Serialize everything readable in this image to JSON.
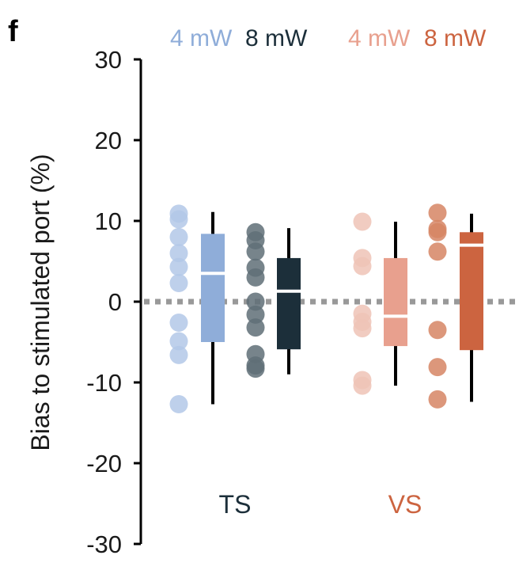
{
  "panel_label": "f",
  "chart_data": {
    "type": "box",
    "ylabel": "Bias to stimulated port (%)",
    "ylim": [
      -30,
      30
    ],
    "yticks": [
      30,
      20,
      10,
      0,
      -10,
      -20,
      -30
    ],
    "reference_line": {
      "y": 0,
      "style": "dotted"
    },
    "legend": {
      "position": "top",
      "entries": [
        {
          "label": "4 mW",
          "color": "#8fadd9"
        },
        {
          "label": "8 mW",
          "color": "#1c2f3a"
        },
        {
          "label": "4 mW",
          "color": "#e8a08e"
        },
        {
          "label": "8 mW",
          "color": "#cc6440"
        }
      ]
    },
    "groups": [
      {
        "label": "TS",
        "label_color": "#1c2f3a"
      },
      {
        "label": "VS",
        "label_color": "#cc6440"
      }
    ],
    "series": [
      {
        "name": "TS 4 mW",
        "group": "TS",
        "color": "#8fadd9",
        "point_color": "#b3c8e8",
        "points": [
          10.9,
          10.2,
          8.0,
          6.0,
          4.3,
          2.3,
          -2.6,
          -4.9,
          -6.6,
          -12.7
        ],
        "box": {
          "q1": -5.0,
          "median": 3.5,
          "q3": 8.4,
          "whisker_low": -12.7,
          "whisker_high": 11.1
        }
      },
      {
        "name": "TS 8 mW",
        "group": "TS",
        "color": "#1c2f3a",
        "point_color": "#5f6f77",
        "points": [
          8.6,
          7.6,
          6.2,
          4.2,
          3.0,
          0.0,
          -1.6,
          -3.2,
          -6.5,
          -7.9,
          -8.3
        ],
        "box": {
          "q1": -5.9,
          "median": 1.3,
          "q3": 5.4,
          "whisker_low": -9.0,
          "whisker_high": 9.1
        }
      },
      {
        "name": "VS 4 mW",
        "group": "VS",
        "color": "#e8a08e",
        "point_color": "#efc3b6",
        "points": [
          9.9,
          5.4,
          4.4,
          -1.5,
          -2.5,
          -3.3,
          -9.7,
          -10.4
        ],
        "box": {
          "q1": -5.5,
          "median": -1.8,
          "q3": 5.4,
          "whisker_low": -10.4,
          "whisker_high": 9.9
        }
      },
      {
        "name": "VS 8 mW",
        "group": "VS",
        "color": "#cc6440",
        "point_color": "#d68564",
        "points": [
          11.0,
          9.0,
          8.6,
          6.2,
          -3.5,
          -8.1,
          -12.1
        ],
        "box": {
          "q1": -6.0,
          "median": 7.0,
          "q3": 8.6,
          "whisker_low": -12.4,
          "whisker_high": 10.9
        }
      }
    ]
  }
}
